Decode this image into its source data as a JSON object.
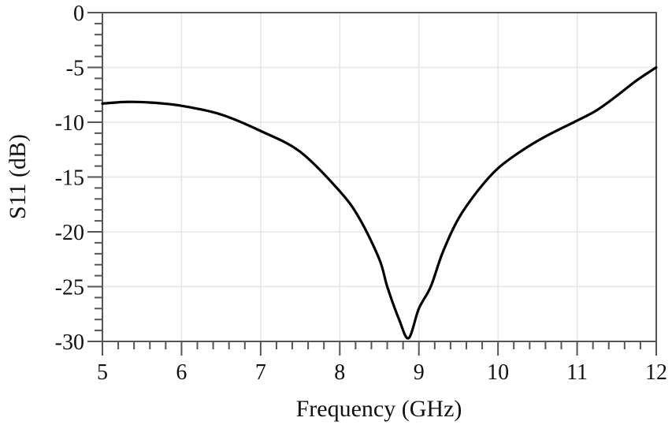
{
  "chart_data": {
    "type": "line",
    "title": "",
    "xlabel": "Frequency (GHz)",
    "ylabel": "S11 (dB)",
    "xlim": [
      5,
      12
    ],
    "ylim": [
      -30,
      0
    ],
    "x_ticks": [
      5,
      6,
      7,
      8,
      9,
      10,
      11,
      12
    ],
    "y_ticks": [
      0,
      -5,
      -10,
      -15,
      -20,
      -25,
      -30
    ],
    "x_minor_step": 0.2,
    "y_minor_step": 1,
    "grid": true,
    "legend": null,
    "series": [
      {
        "name": "S11",
        "color": "#000000",
        "x": [
          5.0,
          5.3,
          5.6,
          6.0,
          6.5,
          7.0,
          7.5,
          8.0,
          8.25,
          8.5,
          8.6,
          8.75,
          8.87,
          9.0,
          9.15,
          9.3,
          9.5,
          9.75,
          10.0,
          10.3,
          10.6,
          11.0,
          11.25,
          11.5,
          11.75,
          12.0
        ],
        "y": [
          -8.3,
          -8.15,
          -8.2,
          -8.5,
          -9.3,
          -10.8,
          -12.7,
          -16.3,
          -18.8,
          -22.5,
          -25.0,
          -28.0,
          -29.7,
          -27.0,
          -25.0,
          -21.9,
          -18.8,
          -16.2,
          -14.2,
          -12.6,
          -11.3,
          -9.85,
          -8.9,
          -7.6,
          -6.2,
          -5.0
        ]
      }
    ],
    "annotations": []
  },
  "colors": {
    "axis": "#555555",
    "grid": "#e6e6e6",
    "line": "#000000"
  }
}
